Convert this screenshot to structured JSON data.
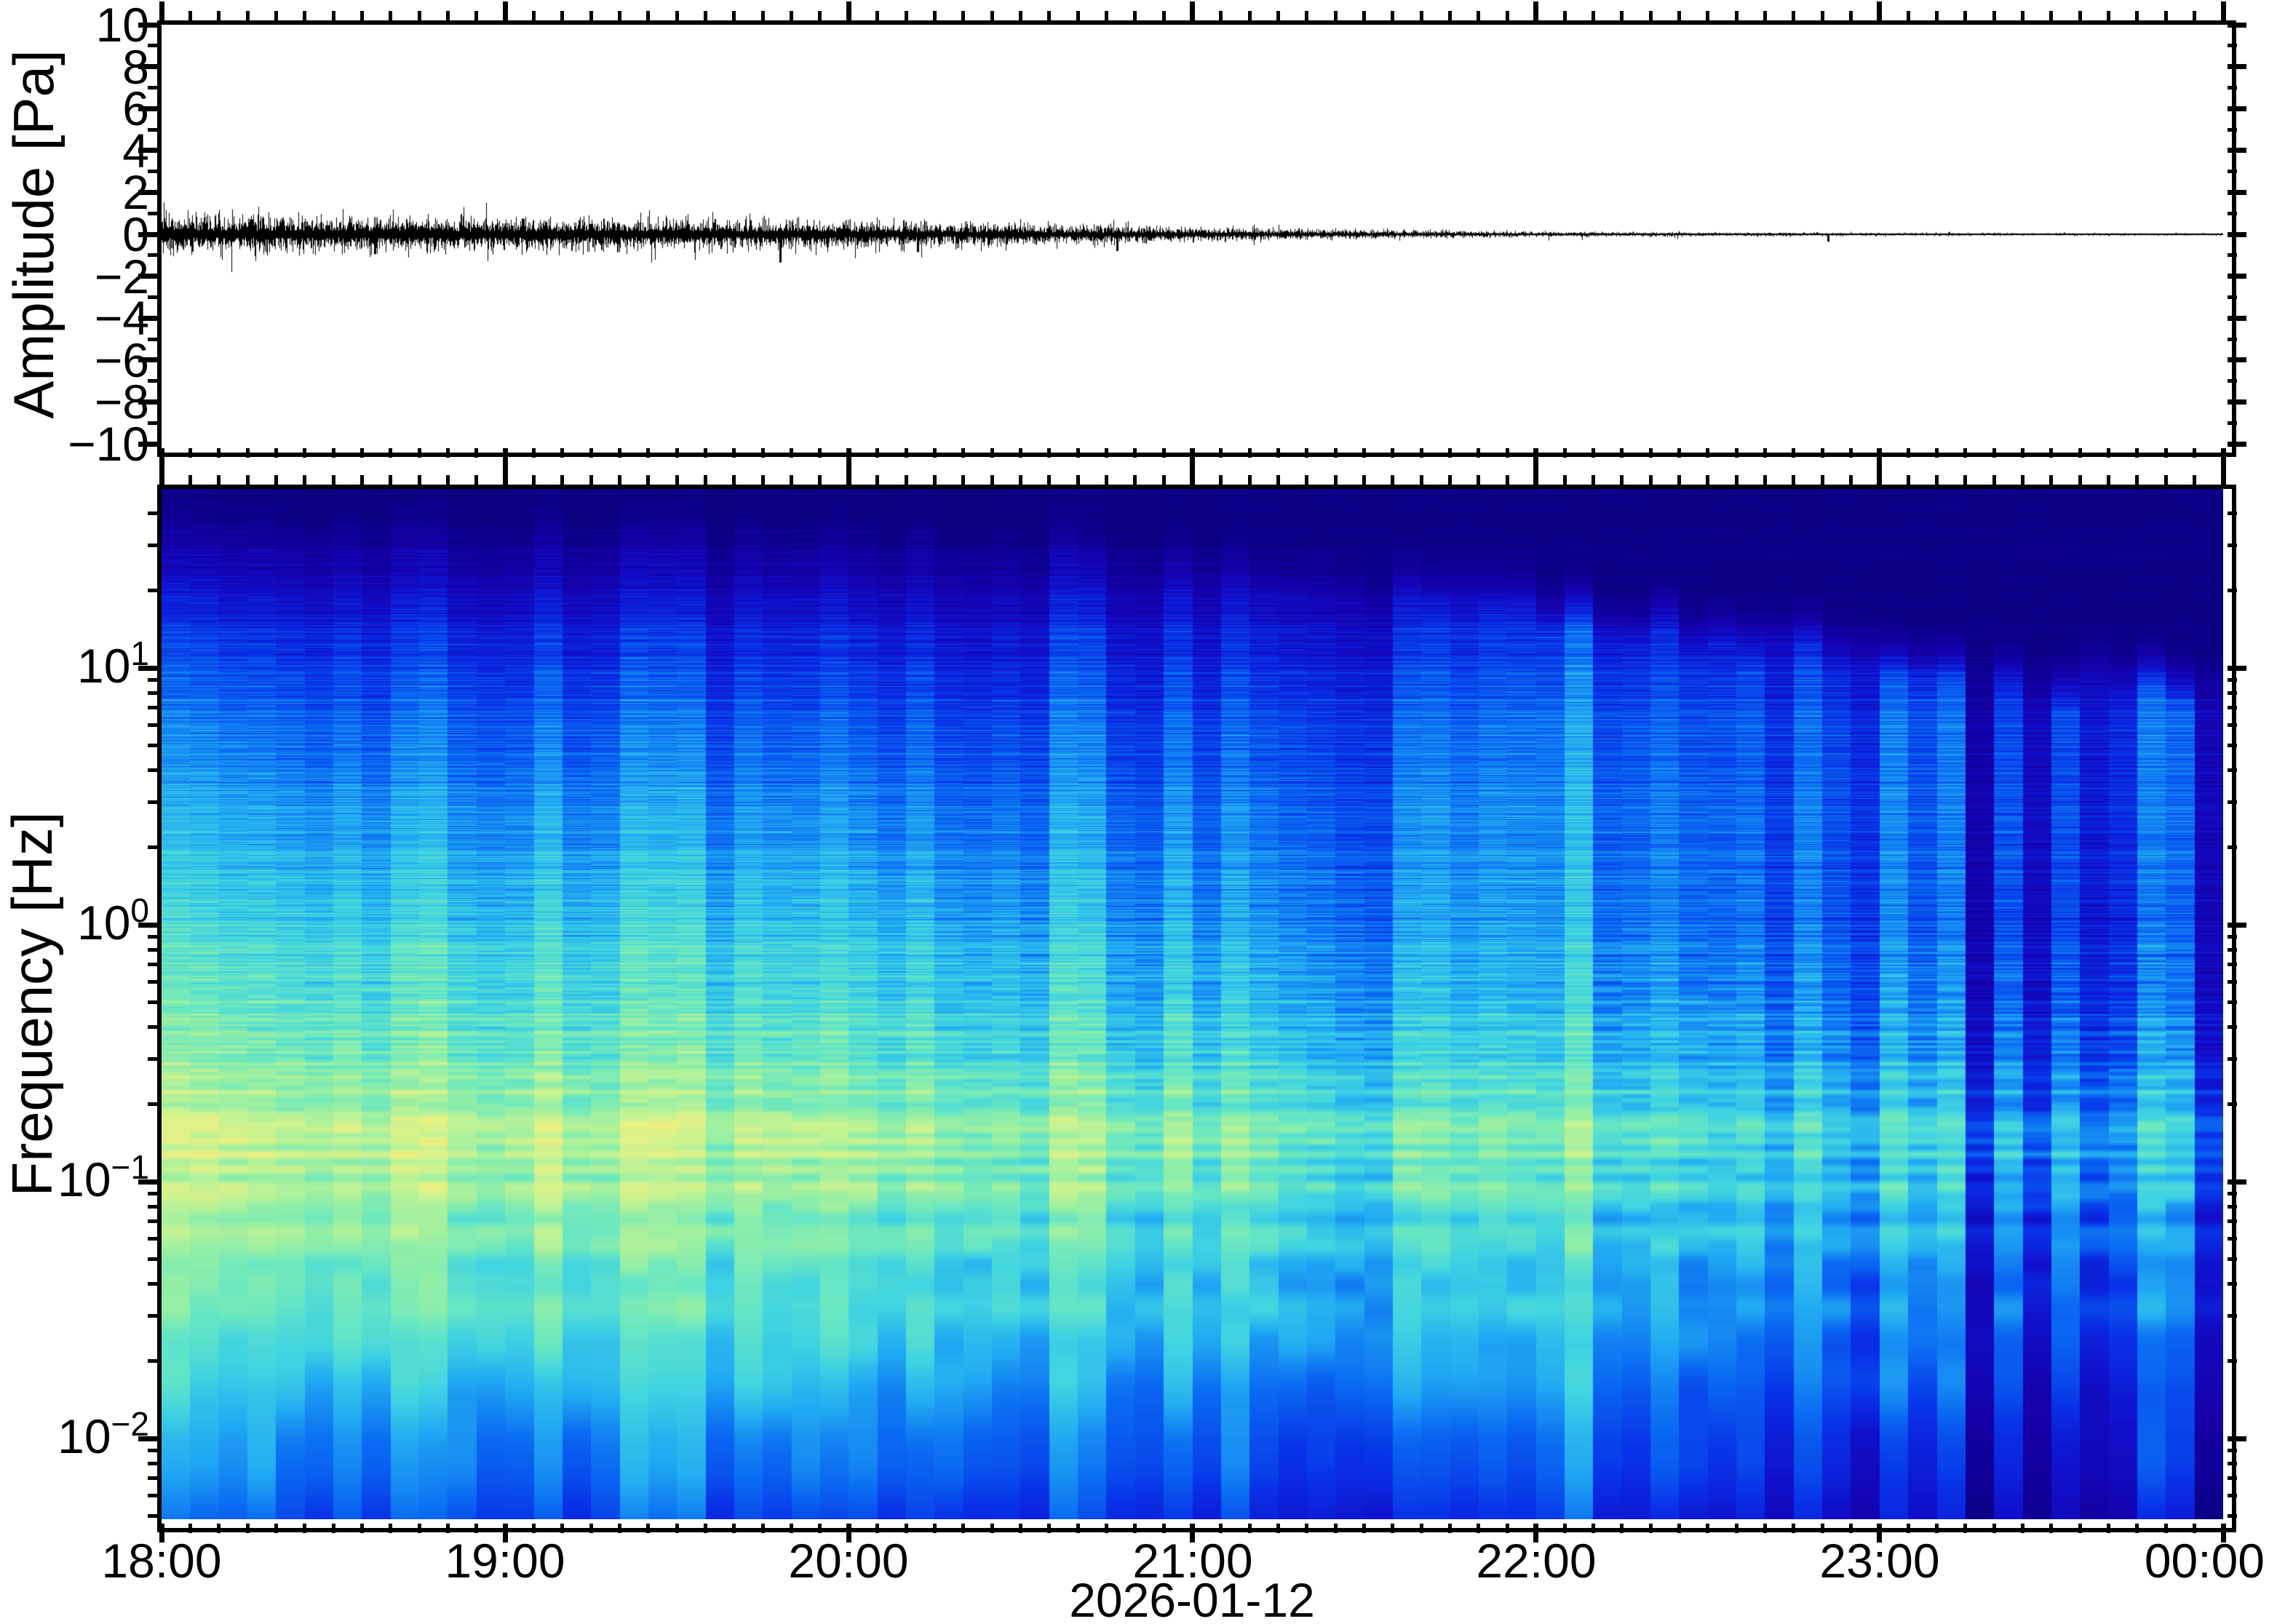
{
  "figure": {
    "date_label": "2026-01-12",
    "background_color": "#ffffff",
    "frame_color": "#000000"
  },
  "x_axis": {
    "hour_labels": [
      "18:00",
      "19:00",
      "20:00",
      "21:00",
      "22:00",
      "23:00",
      "00:00"
    ],
    "span_hours": 6,
    "minor_tick_minutes": 5
  },
  "chart_data": [
    {
      "type": "line",
      "name": "waveform",
      "ylabel": "Amplitude [Pa]",
      "ylim": [
        -10,
        10
      ],
      "ytick_major_step": 2,
      "ytick_minor_step": 1,
      "ytick_values": [
        10,
        8,
        6,
        4,
        2,
        0,
        -2,
        -4,
        -6,
        -8,
        -10
      ],
      "ytick_labels": [
        "10",
        "8",
        "6",
        "4",
        "2",
        "0",
        "−2",
        "−4",
        "−6",
        "−8",
        "−10"
      ],
      "x_start": "18:00",
      "x_end": "00:00",
      "line_color": "#000000",
      "description": "broadband noise trace centered at 0 Pa, peak about ±1 Pa at 18:00 decaying to near zero by 00:00",
      "envelope_pa_by_hour": [
        [
          0,
          0.55
        ],
        [
          0.5,
          0.52
        ],
        [
          1,
          0.48
        ],
        [
          1.5,
          0.45
        ],
        [
          2,
          0.38
        ],
        [
          2.5,
          0.3
        ],
        [
          3,
          0.21
        ],
        [
          3.5,
          0.125
        ],
        [
          4,
          0.075
        ],
        [
          4.5,
          0.055
        ],
        [
          5,
          0.042
        ],
        [
          5.5,
          0.035
        ],
        [
          6,
          0.03
        ]
      ],
      "spikes": [
        {
          "t_hours": 1.8,
          "amplitude_pa": -1.35
        },
        {
          "t_hours": 0.62,
          "amplitude_pa": -0.95
        },
        {
          "t_hours": 1.05,
          "amplitude_pa": 0.75
        },
        {
          "t_hours": 2.2,
          "amplitude_pa": -0.85
        },
        {
          "t_hours": 2.78,
          "amplitude_pa": -0.8
        },
        {
          "t_hours": 4.85,
          "amplitude_pa": -0.35
        }
      ],
      "seed": 42
    },
    {
      "type": "heatmap",
      "name": "spectrogram",
      "ylabel": "Frequency [Hz]",
      "yscale": "log",
      "freq_min_hz": 0.0048,
      "freq_max_hz": 49.8,
      "ytick_decades": [
        {
          "value": 1,
          "exp_text": "1"
        },
        {
          "value": 0,
          "exp_text": "0"
        },
        {
          "value": -1,
          "exp_text": "−1"
        },
        {
          "value": -2,
          "exp_text": "−2"
        }
      ],
      "time_bin_minutes": 5,
      "freq_bin_hz": 0.008,
      "colormap": [
        {
          "pos": 0.0,
          "color": "#0a0080"
        },
        {
          "pos": 0.12,
          "color": "#1500a8"
        },
        {
          "pos": 0.22,
          "color": "#1010cc"
        },
        {
          "pos": 0.3,
          "color": "#0833e8"
        },
        {
          "pos": 0.38,
          "color": "#0a6cf2"
        },
        {
          "pos": 0.46,
          "color": "#22aaf2"
        },
        {
          "pos": 0.53,
          "color": "#3fd2e2"
        },
        {
          "pos": 0.6,
          "color": "#66e6c4"
        },
        {
          "pos": 0.67,
          "color": "#96efa4"
        },
        {
          "pos": 0.74,
          "color": "#c6f392"
        },
        {
          "pos": 0.8,
          "color": "#e9f084"
        },
        {
          "pos": 0.86,
          "color": "#f6e468"
        },
        {
          "pos": 0.92,
          "color": "#fbc653"
        },
        {
          "pos": 1.0,
          "color": "#f9a03c"
        }
      ],
      "power_profile_log10f": [
        [
          -2.31,
          0.46
        ],
        [
          -2.0,
          0.52
        ],
        [
          -1.7,
          0.63
        ],
        [
          -1.4,
          0.72
        ],
        [
          -1.1,
          0.78
        ],
        [
          -0.85,
          0.8
        ],
        [
          -0.6,
          0.77
        ],
        [
          -0.3,
          0.72
        ],
        [
          0.0,
          0.66
        ],
        [
          0.4,
          0.58
        ],
        [
          0.8,
          0.5
        ],
        [
          1.1,
          0.42
        ],
        [
          1.3,
          0.33
        ],
        [
          1.5,
          0.2
        ],
        [
          1.7,
          0.1
        ]
      ],
      "orange_band": {
        "center_log10f": -0.85,
        "width_log10f": 0.35,
        "boost": 0.06
      },
      "highfreq_cutoff_log10f_by_hour": [
        [
          0,
          1.72
        ],
        [
          2.2,
          1.72
        ],
        [
          3,
          1.52
        ],
        [
          4,
          1.33
        ],
        [
          5,
          1.13
        ],
        [
          6,
          0.97
        ]
      ],
      "lowfreq_fade_by_hour": [
        [
          0,
          1.0
        ],
        [
          1.8,
          1.0
        ],
        [
          3,
          0.93
        ],
        [
          4,
          0.85
        ],
        [
          5,
          0.79
        ],
        [
          6,
          0.74
        ]
      ],
      "column_noise_early": 0.035,
      "column_noise_late": 0.08,
      "stripe_noise": 0.09,
      "column_anomalies": [
        {
          "t_hours": 5.3,
          "width_hours": 0.1,
          "delta": 0.2
        },
        {
          "t_hours": 5.45,
          "width_hours": 0.08,
          "delta": 0.16
        },
        {
          "t_hours": 5.65,
          "width_hours": 0.08,
          "delta": 0.13
        },
        {
          "t_hours": 5.93,
          "width_hours": 0.09,
          "delta": 0.17
        },
        {
          "t_hours": 3.53,
          "width_hours": 0.07,
          "delta": 0.09
        },
        {
          "t_hours": 4.12,
          "width_hours": 0.08,
          "delta": -0.07
        },
        {
          "t_hours": 4.55,
          "width_hours": 0.08,
          "delta": -0.06
        }
      ],
      "seed": 7
    }
  ]
}
